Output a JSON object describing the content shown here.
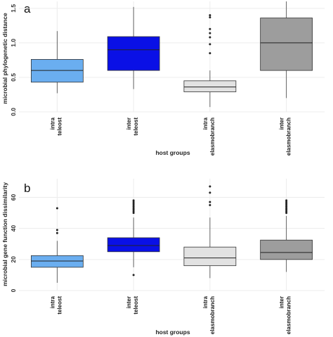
{
  "chart_data": [
    {
      "type": "box",
      "panel_label": "a",
      "title": "",
      "xlabel": "host groups",
      "ylabel": "microbial phylogenetic distance",
      "ylim": [
        0,
        1.6
      ],
      "yticks": [
        "0.0",
        "0.5",
        "1.0",
        "1.5"
      ],
      "ytick_values": [
        0,
        0.5,
        1.0,
        1.5
      ],
      "grid": true,
      "categories": [
        {
          "line1": "intra",
          "line2": "teleost"
        },
        {
          "line1": "inter",
          "line2": "teleost"
        },
        {
          "line1": "intra",
          "line2": "elasmobranch"
        },
        {
          "line1": "inter",
          "line2": "elasmobranch"
        }
      ],
      "boxes": [
        {
          "color": "#6aaef0",
          "min": 0.27,
          "q1": 0.43,
          "median": 0.6,
          "q3": 0.76,
          "max": 1.17,
          "outliers": []
        },
        {
          "color": "#0a10e6",
          "min": 0.33,
          "q1": 0.6,
          "median": 0.9,
          "q3": 1.09,
          "max": 1.52,
          "outliers": []
        },
        {
          "color": "#e2e2e2",
          "min": 0.07,
          "q1": 0.29,
          "median": 0.36,
          "q3": 0.45,
          "max": 0.6,
          "outliers": [
            0.85,
            0.98,
            1.08,
            1.14,
            1.2,
            1.37,
            1.4
          ]
        },
        {
          "color": "#9d9d9d",
          "min": 0.2,
          "q1": 0.6,
          "median": 1.0,
          "q3": 1.36,
          "max": 1.6,
          "outliers": []
        }
      ]
    },
    {
      "type": "box",
      "panel_label": "b",
      "title": "",
      "xlabel": "host groups",
      "ylabel": "microbial gene function dissimilarity",
      "ylim": [
        0,
        72
      ],
      "yticks": [
        "0",
        "20",
        "40",
        "60"
      ],
      "ytick_values": [
        0,
        20,
        40,
        60
      ],
      "grid": true,
      "categories": [
        {
          "line1": "intra",
          "line2": "teleost"
        },
        {
          "line1": "inter",
          "line2": "teleost"
        },
        {
          "line1": "intra",
          "line2": "elasmobranch"
        },
        {
          "line1": "inter",
          "line2": "elasmobranch"
        }
      ],
      "boxes": [
        {
          "color": "#6aaef0",
          "min": 5,
          "q1": 15,
          "median": 19,
          "q3": 22.5,
          "max": 32,
          "outliers": [
            37,
            39,
            53
          ]
        },
        {
          "color": "#0a10e6",
          "min": 15,
          "q1": 25,
          "median": 29,
          "q3": 34,
          "max": 47,
          "outliers": [
            10,
            50,
            51,
            52,
            53,
            54,
            55,
            56,
            57,
            58
          ]
        },
        {
          "color": "#e2e2e2",
          "min": 8,
          "q1": 16,
          "median": 21,
          "q3": 28,
          "max": 47,
          "outliers": [
            55,
            57,
            63,
            67
          ]
        },
        {
          "color": "#9d9d9d",
          "min": 12,
          "q1": 20,
          "median": 24.5,
          "q3": 32.5,
          "max": 48,
          "outliers": [
            50,
            51,
            52,
            53,
            54,
            55,
            56,
            57,
            58
          ]
        }
      ]
    }
  ]
}
